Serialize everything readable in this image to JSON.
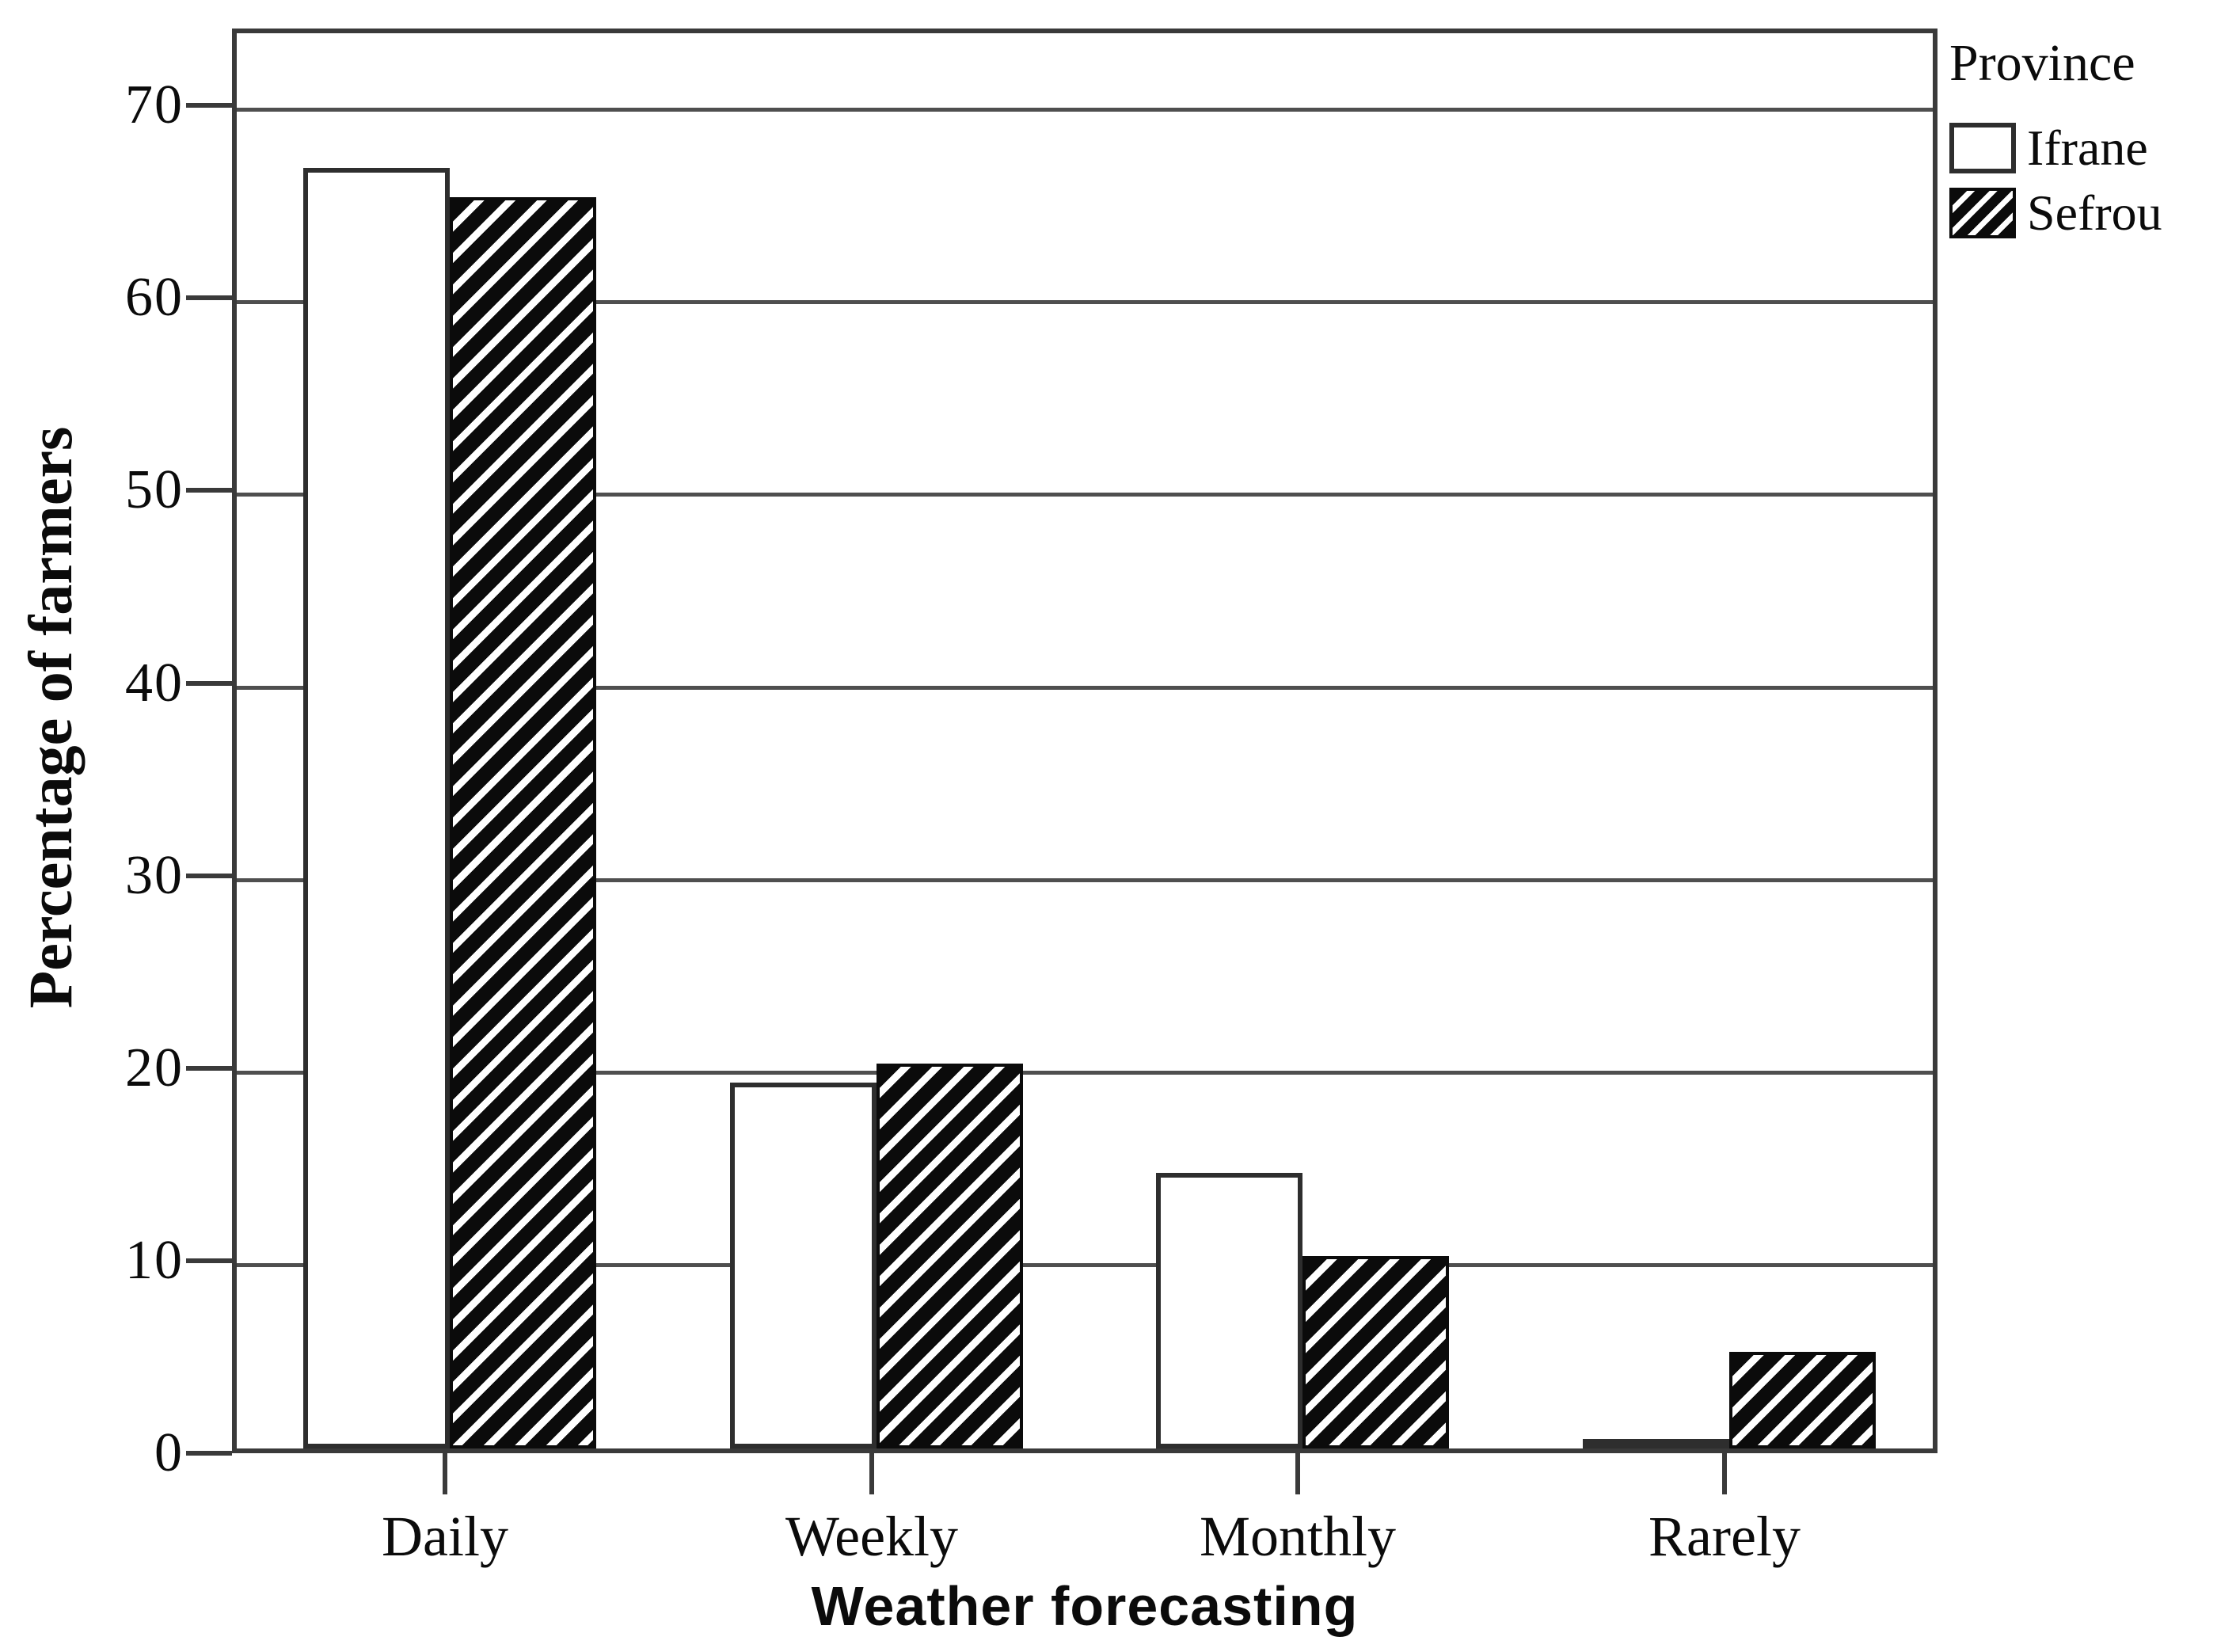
{
  "chart_data": {
    "type": "bar",
    "title": "",
    "categories": [
      "Daily",
      "Weekly",
      "Monthly",
      "Rarely"
    ],
    "series": [
      {
        "name": "Ifrane",
        "pattern": "solid-white",
        "values": [
          66.5,
          19,
          14.3,
          0.3
        ]
      },
      {
        "name": "Sefrou",
        "pattern": "diagonal-hatch",
        "values": [
          65,
          20,
          10,
          5
        ]
      }
    ],
    "xlabel": "Weather forecasting",
    "ylabel": "Percentage of farmers",
    "yticks": [
      0,
      10,
      20,
      30,
      40,
      50,
      60,
      70
    ],
    "ylim": [
      0,
      74
    ],
    "grid": "horizontal",
    "legend": {
      "title": "Province",
      "entries": [
        "Ifrane",
        "Sefrou"
      ],
      "position": "outside-top-right"
    },
    "colors": {
      "background": "#ffffff",
      "axis_line": "#3a3a3a",
      "gridline": "#4f4f4f",
      "bar_outline": "#2e2e2e",
      "hatch_ink": "#0b0b0b",
      "text": "#0b0b0b"
    }
  }
}
